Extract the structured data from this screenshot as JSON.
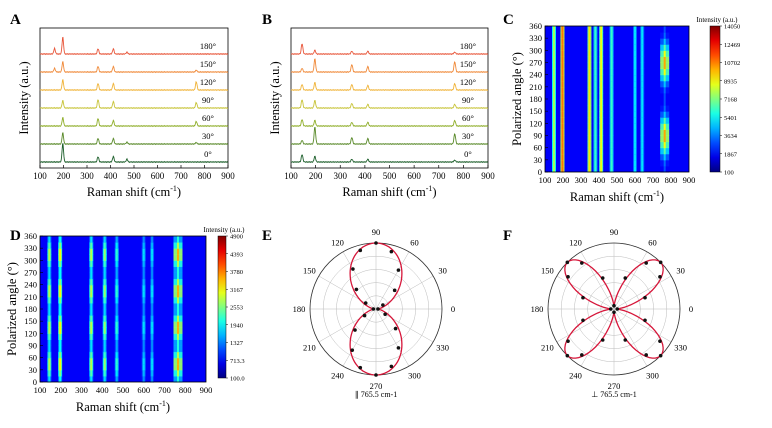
{
  "panels": [
    {
      "id": "A",
      "letter": "A",
      "type": "stacked-line",
      "xlabel": "Raman shift (cm",
      "xlabel_sup": "-1",
      "xlabel_tail": ")",
      "ylabel": "Intensity (a.u.)",
      "xticks": [
        "100",
        "200",
        "300",
        "400",
        "500",
        "600",
        "700",
        "800",
        "900"
      ],
      "xlim": [
        100,
        900
      ],
      "series": [
        {
          "angle_label": "0°",
          "color": "#1c5e2a",
          "peaks": [
            [
              197,
              1.0
            ],
            [
              347,
              0.28
            ],
            [
              412,
              0.3
            ],
            [
              470,
              0.15
            ]
          ]
        },
        {
          "angle_label": "30°",
          "color": "#5a8a2a",
          "peaks": [
            [
              197,
              0.6
            ],
            [
              347,
              0.3
            ],
            [
              412,
              0.3
            ],
            [
              470,
              0.1
            ],
            [
              765,
              0.08
            ]
          ]
        },
        {
          "angle_label": "60°",
          "color": "#8fae2a",
          "peaks": [
            [
              197,
              0.45
            ],
            [
              347,
              0.4
            ],
            [
              412,
              0.3
            ],
            [
              765,
              0.25
            ]
          ]
        },
        {
          "angle_label": "90°",
          "color": "#c8c43a",
          "peaks": [
            [
              197,
              0.4
            ],
            [
              347,
              0.45
            ],
            [
              412,
              0.35
            ],
            [
              765,
              0.3
            ]
          ]
        },
        {
          "angle_label": "120°",
          "color": "#f0b43a",
          "peaks": [
            [
              197,
              0.55
            ],
            [
              347,
              0.35
            ],
            [
              412,
              0.35
            ],
            [
              765,
              0.45
            ]
          ]
        },
        {
          "angle_label": "150°",
          "color": "#f08a3a",
          "peaks": [
            [
              162,
              0.2
            ],
            [
              197,
              0.55
            ],
            [
              347,
              0.3
            ],
            [
              412,
              0.3
            ],
            [
              765,
              0.1
            ]
          ]
        },
        {
          "angle_label": "180°",
          "color": "#e8563a",
          "peaks": [
            [
              162,
              0.3
            ],
            [
              197,
              0.9
            ],
            [
              347,
              0.28
            ],
            [
              412,
              0.28
            ],
            [
              470,
              0.1
            ]
          ]
        }
      ]
    },
    {
      "id": "B",
      "letter": "B",
      "type": "stacked-line",
      "xlabel": "Raman shift (cm",
      "xlabel_sup": "-1",
      "xlabel_tail": ")",
      "ylabel": "Intensity (a.u.)",
      "xticks": [
        "100",
        "200",
        "300",
        "400",
        "500",
        "600",
        "700",
        "800",
        "900"
      ],
      "xlim": [
        100,
        900
      ],
      "series": [
        {
          "angle_label": "0°",
          "color": "#1c5e2a",
          "peaks": [
            [
              145,
              0.4
            ],
            [
              197,
              0.3
            ],
            [
              347,
              0.15
            ],
            [
              412,
              0.15
            ],
            [
              765,
              0.1
            ]
          ]
        },
        {
          "angle_label": "30°",
          "color": "#5a8a2a",
          "peaks": [
            [
              145,
              0.2
            ],
            [
              197,
              0.9
            ],
            [
              347,
              0.35
            ],
            [
              412,
              0.3
            ],
            [
              765,
              0.55
            ]
          ]
        },
        {
          "angle_label": "60°",
          "color": "#8fae2a",
          "peaks": [
            [
              145,
              0.35
            ],
            [
              197,
              0.3
            ],
            [
              347,
              0.2
            ],
            [
              412,
              0.2
            ],
            [
              765,
              0.3
            ]
          ]
        },
        {
          "angle_label": "90°",
          "color": "#c8c43a",
          "peaks": [
            [
              145,
              0.45
            ],
            [
              197,
              0.4
            ],
            [
              347,
              0.25
            ],
            [
              412,
              0.2
            ],
            [
              765,
              0.2
            ]
          ]
        },
        {
          "angle_label": "120°",
          "color": "#f0b43a",
          "peaks": [
            [
              145,
              0.3
            ],
            [
              197,
              0.4
            ],
            [
              347,
              0.3
            ],
            [
              412,
              0.25
            ],
            [
              765,
              0.35
            ]
          ]
        },
        {
          "angle_label": "150°",
          "color": "#f08a3a",
          "peaks": [
            [
              145,
              0.2
            ],
            [
              197,
              0.7
            ],
            [
              347,
              0.4
            ],
            [
              412,
              0.3
            ],
            [
              765,
              0.55
            ]
          ]
        },
        {
          "angle_label": "180°",
          "color": "#e8563a",
          "peaks": [
            [
              145,
              0.55
            ],
            [
              197,
              0.2
            ],
            [
              347,
              0.15
            ],
            [
              412,
              0.15
            ],
            [
              765,
              0.1
            ]
          ]
        }
      ]
    },
    {
      "id": "C",
      "letter": "C",
      "type": "heatmap",
      "xlabel": "Raman shift (cm",
      "xlabel_sup": "-1",
      "xlabel_tail": ")",
      "ylabel": "Polarized angle (°)",
      "xticks": [
        "100",
        "200",
        "300",
        "400",
        "500",
        "600",
        "700",
        "800",
        "900"
      ],
      "yticks": [
        "0",
        "30",
        "60",
        "90",
        "120",
        "150",
        "180",
        "210",
        "240",
        "270",
        "300",
        "330",
        "360"
      ],
      "xlim": [
        100,
        900
      ],
      "ylim": [
        0,
        360
      ],
      "colorbar_title": "Intensity (a.u.)",
      "colorbar_ticks": [
        "14050",
        "12469",
        "10702",
        "8935",
        "7168",
        "5401",
        "3634",
        "1867",
        "100"
      ],
      "bands": [
        [
          150,
          0.45,
          0
        ],
        [
          197,
          0.75,
          0
        ],
        [
          347,
          0.6,
          0
        ],
        [
          380,
          0.3,
          0
        ],
        [
          412,
          0.55,
          0
        ],
        [
          470,
          0.3,
          0
        ],
        [
          600,
          0.2,
          0
        ],
        [
          640,
          0.2,
          0
        ],
        [
          765,
          0.7,
          1
        ]
      ]
    },
    {
      "id": "D",
      "letter": "D",
      "type": "heatmap",
      "xlabel": "Raman shift (cm",
      "xlabel_sup": "-1",
      "xlabel_tail": ")",
      "ylabel": "Polarized angle (°)",
      "xticks": [
        "100",
        "200",
        "300",
        "400",
        "500",
        "600",
        "700",
        "800",
        "900"
      ],
      "yticks": [
        "0",
        "30",
        "60",
        "90",
        "120",
        "150",
        "180",
        "210",
        "240",
        "270",
        "300",
        "330",
        "360"
      ],
      "xlim": [
        100,
        900
      ],
      "ylim": [
        0,
        360
      ],
      "colorbar_title": "Intensity (a.u.)",
      "colorbar_ticks": [
        "4900",
        "4393",
        "3780",
        "3167",
        "2553",
        "1940",
        "1327",
        "713.3",
        "100.0"
      ],
      "bands": [
        [
          145,
          0.5,
          2
        ],
        [
          197,
          0.6,
          2
        ],
        [
          347,
          0.5,
          2
        ],
        [
          412,
          0.45,
          2
        ],
        [
          470,
          0.3,
          2
        ],
        [
          600,
          0.2,
          2
        ],
        [
          640,
          0.2,
          2
        ],
        [
          765,
          0.7,
          2
        ]
      ]
    },
    {
      "id": "E",
      "letter": "E",
      "type": "polar",
      "angle_ticks": [
        "0",
        "30",
        "60",
        "90",
        "120",
        "150",
        "180",
        "210",
        "240",
        "270",
        "300",
        "330"
      ],
      "caption": "∥ 765.5 cm-1",
      "shape": "dipole",
      "data_points": [
        [
          0,
          0.03
        ],
        [
          30,
          0.12
        ],
        [
          45,
          0.4
        ],
        [
          60,
          0.68
        ],
        [
          75,
          0.9
        ],
        [
          90,
          1.0
        ],
        [
          105,
          0.92
        ],
        [
          120,
          0.7
        ],
        [
          135,
          0.42
        ],
        [
          150,
          0.18
        ],
        [
          180,
          0.04
        ],
        [
          210,
          0.2
        ],
        [
          225,
          0.45
        ],
        [
          240,
          0.72
        ],
        [
          255,
          0.92
        ],
        [
          270,
          1.0
        ],
        [
          285,
          0.9
        ],
        [
          300,
          0.68
        ],
        [
          315,
          0.42
        ],
        [
          330,
          0.16
        ]
      ]
    },
    {
      "id": "F",
      "letter": "F",
      "type": "polar",
      "angle_ticks": [
        "0",
        "30",
        "60",
        "90",
        "120",
        "150",
        "180",
        "210",
        "240",
        "270",
        "300",
        "330"
      ],
      "caption": "⊥ 765.5 cm-1",
      "shape": "quadrupole",
      "data_points": [
        [
          0,
          0.05
        ],
        [
          20,
          0.5
        ],
        [
          35,
          0.85
        ],
        [
          45,
          1.0
        ],
        [
          55,
          0.85
        ],
        [
          70,
          0.5
        ],
        [
          90,
          0.05
        ],
        [
          110,
          0.5
        ],
        [
          125,
          0.85
        ],
        [
          135,
          1.0
        ],
        [
          145,
          0.85
        ],
        [
          160,
          0.5
        ],
        [
          180,
          0.05
        ],
        [
          200,
          0.5
        ],
        [
          215,
          0.85
        ],
        [
          225,
          1.0
        ],
        [
          235,
          0.85
        ],
        [
          250,
          0.5
        ],
        [
          270,
          0.05
        ],
        [
          290,
          0.5
        ],
        [
          305,
          0.85
        ],
        [
          315,
          1.0
        ],
        [
          325,
          0.85
        ],
        [
          340,
          0.5
        ]
      ]
    }
  ],
  "colors": {
    "axis": "#000000",
    "polar_curve": "#d6163a",
    "polar_point": "#111111",
    "polar_grid": "#bbbbbb"
  },
  "chart_data": [
    {
      "panel": "A",
      "type": "line",
      "xlabel": "Raman shift (cm-1)",
      "ylabel": "Intensity (a.u.)",
      "xlim": [
        100,
        900
      ],
      "series": [
        {
          "name": "0°",
          "peak_positions": [
            197,
            347,
            412,
            470
          ]
        },
        {
          "name": "30°",
          "peak_positions": [
            197,
            347,
            412,
            470,
            765
          ]
        },
        {
          "name": "60°",
          "peak_positions": [
            197,
            347,
            412,
            765
          ]
        },
        {
          "name": "90°",
          "peak_positions": [
            197,
            347,
            412,
            765
          ]
        },
        {
          "name": "120°",
          "peak_positions": [
            197,
            347,
            412,
            765
          ]
        },
        {
          "name": "150°",
          "peak_positions": [
            162,
            197,
            347,
            412,
            765
          ]
        },
        {
          "name": "180°",
          "peak_positions": [
            162,
            197,
            347,
            412,
            470
          ]
        }
      ]
    },
    {
      "panel": "B",
      "type": "line",
      "xlabel": "Raman shift (cm-1)",
      "ylabel": "Intensity (a.u.)",
      "xlim": [
        100,
        900
      ],
      "series": [
        {
          "name": "0°",
          "peak_positions": [
            145,
            197,
            347,
            412,
            765
          ]
        },
        {
          "name": "30°",
          "peak_positions": [
            145,
            197,
            347,
            412,
            765
          ]
        },
        {
          "name": "60°",
          "peak_positions": [
            145,
            197,
            347,
            412,
            765
          ]
        },
        {
          "name": "90°",
          "peak_positions": [
            145,
            197,
            347,
            412,
            765
          ]
        },
        {
          "name": "120°",
          "peak_positions": [
            145,
            197,
            347,
            412,
            765
          ]
        },
        {
          "name": "150°",
          "peak_positions": [
            145,
            197,
            347,
            412,
            765
          ]
        },
        {
          "name": "180°",
          "peak_positions": [
            145,
            197,
            347,
            412,
            765
          ]
        }
      ]
    },
    {
      "panel": "C",
      "type": "heatmap",
      "xlabel": "Raman shift (cm-1)",
      "ylabel": "Polarized angle (°)",
      "xlim": [
        100,
        900
      ],
      "ylim": [
        0,
        360
      ],
      "colorbar_range": [
        100,
        14050
      ]
    },
    {
      "panel": "D",
      "type": "heatmap",
      "xlabel": "Raman shift (cm-1)",
      "ylabel": "Polarized angle (°)",
      "xlim": [
        100,
        900
      ],
      "ylim": [
        0,
        360
      ],
      "colorbar_range": [
        100,
        4900
      ]
    },
    {
      "panel": "E",
      "type": "polar",
      "mode": "765.5 cm-1 parallel"
    },
    {
      "panel": "F",
      "type": "polar",
      "mode": "765.5 cm-1 perpendicular"
    }
  ]
}
